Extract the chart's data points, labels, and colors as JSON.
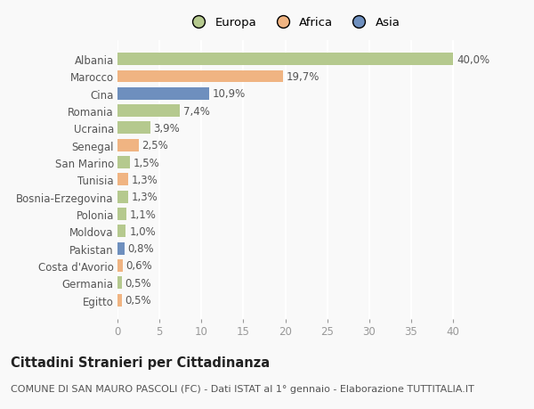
{
  "categories": [
    "Albania",
    "Marocco",
    "Cina",
    "Romania",
    "Ucraina",
    "Senegal",
    "San Marino",
    "Tunisia",
    "Bosnia-Erzegovina",
    "Polonia",
    "Moldova",
    "Pakistan",
    "Costa d'Avorio",
    "Germania",
    "Egitto"
  ],
  "values": [
    40.0,
    19.7,
    10.9,
    7.4,
    3.9,
    2.5,
    1.5,
    1.3,
    1.3,
    1.1,
    1.0,
    0.8,
    0.6,
    0.5,
    0.5
  ],
  "labels": [
    "40,0%",
    "19,7%",
    "10,9%",
    "7,4%",
    "3,9%",
    "2,5%",
    "1,5%",
    "1,3%",
    "1,3%",
    "1,1%",
    "1,0%",
    "0,8%",
    "0,6%",
    "0,5%",
    "0,5%"
  ],
  "continents": [
    "Europa",
    "Africa",
    "Asia",
    "Europa",
    "Europa",
    "Africa",
    "Europa",
    "Africa",
    "Europa",
    "Europa",
    "Europa",
    "Asia",
    "Africa",
    "Europa",
    "Africa"
  ],
  "colors": {
    "Europa": "#b5c98e",
    "Africa": "#f0b482",
    "Asia": "#6e8fbe"
  },
  "xlim": [
    0,
    42
  ],
  "xticks": [
    0,
    5,
    10,
    15,
    20,
    25,
    30,
    35,
    40
  ],
  "title": "Cittadini Stranieri per Cittadinanza",
  "subtitle": "COMUNE DI SAN MAURO PASCOLI (FC) - Dati ISTAT al 1° gennaio - Elaborazione TUTTITALIA.IT",
  "background_color": "#f9f9f9",
  "grid_color": "#ffffff",
  "bar_height": 0.72,
  "label_fontsize": 8.5,
  "ytick_fontsize": 8.5,
  "xtick_fontsize": 8.5,
  "title_fontsize": 10.5,
  "subtitle_fontsize": 8.0,
  "legend_fontsize": 9.5
}
